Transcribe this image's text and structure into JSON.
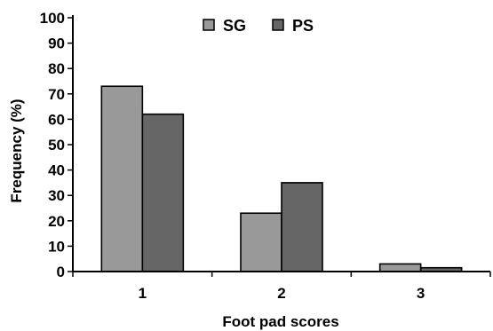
{
  "chart_data": {
    "type": "bar",
    "title": "",
    "xlabel": "Foot pad scores",
    "ylabel": "Frequency (%)",
    "categories": [
      "1",
      "2",
      "3"
    ],
    "ylim": [
      0,
      100
    ],
    "yticks": [
      0,
      10,
      20,
      30,
      40,
      50,
      60,
      70,
      80,
      90,
      100
    ],
    "grid": false,
    "legend_position": "top-center",
    "series": [
      {
        "name": "SG",
        "values": [
          73,
          23,
          3
        ],
        "color": "#999999"
      },
      {
        "name": "PS",
        "values": [
          62,
          35,
          1.5
        ],
        "color": "#666666"
      }
    ]
  }
}
